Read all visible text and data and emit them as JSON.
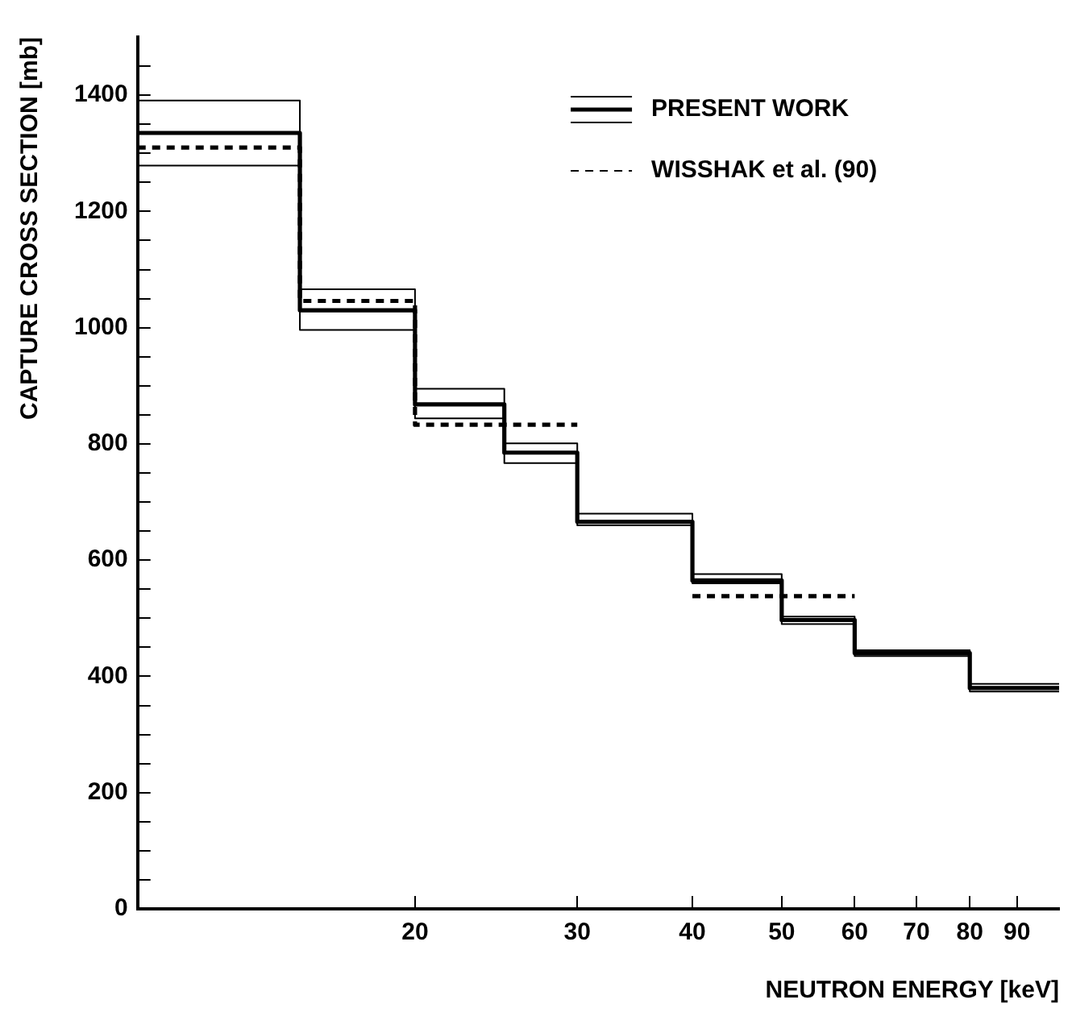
{
  "chart_data": {
    "type": "step",
    "xlabel": "NEUTRON ENERGY [keV]",
    "ylabel": "CAPTURE CROSS SECTION [mb]",
    "log": "x",
    "xlim": [
      10,
      100
    ],
    "xticks": [
      20,
      30,
      40,
      50,
      60,
      70,
      80,
      90
    ],
    "ylim": [
      0,
      1500
    ],
    "yticks": [
      0,
      {
        "value": 50,
        "label": null
      },
      {
        "value": 100,
        "label": null
      },
      {
        "value": 150,
        "label": null
      },
      200,
      {
        "value": 250,
        "label": null
      },
      {
        "value": 300,
        "label": null
      },
      {
        "value": 350,
        "label": null
      },
      400,
      {
        "value": 450,
        "label": null
      },
      {
        "value": 500,
        "label": null
      },
      {
        "value": 550,
        "label": null
      },
      600,
      {
        "value": 650,
        "label": null
      },
      {
        "value": 700,
        "label": null
      },
      {
        "value": 750,
        "label": null
      },
      800,
      {
        "value": 850,
        "label": null
      },
      {
        "value": 900,
        "label": null
      },
      {
        "value": 950,
        "label": null
      },
      1000,
      {
        "value": 1050,
        "label": null
      },
      {
        "value": 1100,
        "label": null
      },
      {
        "value": 1150,
        "label": null
      },
      1200,
      {
        "value": 1250,
        "label": null
      },
      {
        "value": 1300,
        "label": null
      },
      {
        "value": 1350,
        "label": null
      },
      1400,
      {
        "value": 1450,
        "label": null
      }
    ],
    "grid": false,
    "legend": "top right",
    "series": [
      {
        "name": "PRESENT WORK",
        "color": "#000000",
        "line_style": "solid",
        "x": [
          10,
          15,
          20,
          25,
          30,
          40,
          50,
          60,
          80,
          100
        ],
        "values": [
          1335,
          1030,
          868,
          785,
          666,
          565,
          497,
          440,
          380,
          380
        ]
      },
      {
        "color": "#000000",
        "line_style": "solid",
        "x": [
          10,
          15,
          20,
          25,
          30,
          40,
          50,
          60,
          80,
          100
        ],
        "values": [
          1279,
          996,
          844,
          767,
          660,
          560,
          490,
          435,
          374,
          374
        ]
      },
      {
        "color": "#000000",
        "line_style": "solid",
        "x": [
          10,
          15,
          20,
          25,
          30,
          40,
          50,
          60,
          80,
          100
        ],
        "values": [
          1391,
          1066,
          895,
          801,
          680,
          576,
          503,
          445,
          387,
          387
        ]
      },
      {
        "name": "WISSHAK et al. (90)",
        "color": "#000000",
        "line_style": "dashed",
        "x": [
          10,
          15,
          20,
          30,
          40,
          60
        ],
        "values": [
          1310,
          1046,
          833,
          null,
          538,
          538
        ]
      }
    ]
  }
}
